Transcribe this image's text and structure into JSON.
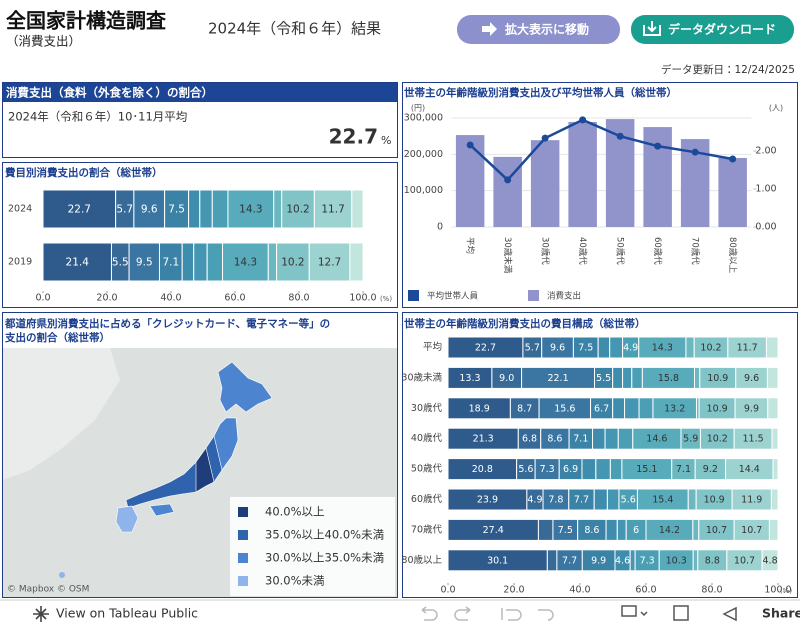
{
  "header": {
    "title": "全国家計構造調査",
    "subtitle": "（消費支出）",
    "period": "2024年（令和６年）結果",
    "buttons": [
      "拡大表示に移動",
      "データダウンロード"
    ],
    "updated": "データ更新日：12/24/2025"
  },
  "kpi": {
    "title": "消費支出（食料（外食を除く）の割合）",
    "period": "2024年（令和６年）10･11月平均",
    "value": 22.7,
    "unit": "%"
  },
  "chart_data": [
    {
      "type": "stacked-bar",
      "title": "費目別消費支出の割合（総世帯）",
      "categories": [
        "2024",
        "2019"
      ],
      "xlim": [
        0,
        100
      ],
      "xticks": [
        {
          "value": 0,
          "label": "0.0"
        },
        {
          "value": 20,
          "label": "20.0"
        },
        {
          "value": 40,
          "label": "40.0"
        },
        {
          "value": 60,
          "label": "60.0"
        },
        {
          "value": 80,
          "label": "80.0"
        },
        {
          "value": 100,
          "label": "100.0"
        }
      ],
      "x_unit": "(%)",
      "series": [
        {
          "color": "#2e5b8c",
          "values": [
            22.7,
            21.4
          ]
        },
        {
          "color": "#386a98",
          "values": [
            5.7,
            5.5
          ]
        },
        {
          "color": "#3a76a1",
          "values": [
            9.6,
            9.5
          ]
        },
        {
          "color": "#3b82a7",
          "values": [
            7.5,
            7.1
          ]
        },
        {
          "color": "#3f8dad",
          "values": [
            3.5,
            3.6
          ]
        },
        {
          "color": "#4496b2",
          "values": [
            3.9,
            4.2
          ]
        },
        {
          "color": "#4b9fb5",
          "values": [
            4.9,
            4.8
          ]
        },
        {
          "color": "#58abbb",
          "values": [
            14.3,
            14.3
          ]
        },
        {
          "color": "#6bb8c1",
          "values": [
            2.5,
            2.6
          ]
        },
        {
          "color": "#80c4c7",
          "values": [
            10.2,
            10.2
          ]
        },
        {
          "color": "#9cd3d0",
          "values": [
            11.7,
            12.7
          ]
        },
        {
          "color": "#c2e5de",
          "values": [
            3.5,
            4.1
          ]
        }
      ]
    },
    {
      "type": "combo",
      "title": "世帯主の年齢階級別消費支出及び平均世帯人員（総世帯）",
      "categories": [
        "平均",
        "30歳未満",
        "30歳代",
        "40歳代",
        "50歳代",
        "60歳代",
        "70歳代",
        "80歳以上"
      ],
      "y_unit": "(円)",
      "y2_unit": "(人)",
      "ylim": [
        0,
        300000
      ],
      "yticks": [
        0,
        {
          "value": 100000,
          "label": "100,000"
        },
        {
          "value": 200000,
          "label": "200,000"
        },
        {
          "value": 300000,
          "label": "300,000"
        }
      ],
      "y2lim": [
        0,
        2.87
      ],
      "y2ticks": [
        {
          "value": 0,
          "label": "0.00"
        },
        {
          "value": 1,
          "label": "1.00"
        },
        {
          "value": 2,
          "label": "2.00"
        }
      ],
      "grid": true,
      "series": [
        {
          "name": "平均世帯人員",
          "type": "line",
          "axis": "y2",
          "color": "#1b4a9b",
          "values": [
            2.16,
            1.24,
            2.34,
            2.82,
            2.39,
            2.13,
            1.97,
            1.79
          ]
        },
        {
          "name": "消費支出",
          "type": "bar",
          "color": "#9194ca",
          "values": [
            253000,
            193000,
            239000,
            289000,
            297000,
            275000,
            242000,
            190000
          ]
        }
      ]
    },
    {
      "type": "map",
      "title": [
        "都道府県別消費支出に占める「クレジットカード、電子マネー等」の",
        "支出の割合（総世帯）"
      ],
      "legend": [
        {
          "label": "40.0%以上",
          "color": "#1f3d7a"
        },
        {
          "label": "35.0%以上40.0%未満",
          "color": "#2f63ae"
        },
        {
          "label": "30.0%以上35.0%未満",
          "color": "#4d84d0"
        },
        {
          "label": "30.0%未満",
          "color": "#8fb4ec"
        }
      ],
      "attribution": "© Mapbox  © OSM"
    },
    {
      "type": "stacked-bar",
      "title": "世帯主の年齢階級別消費支出の費目構成（総世帯）",
      "categories": [
        "平均",
        "30歳未満",
        "30歳代",
        "40歳代",
        "50歳代",
        "60歳代",
        "70歳代",
        "80歳以上"
      ],
      "xlim": [
        0,
        100
      ],
      "xticks": [
        {
          "value": 0,
          "label": "0.0"
        },
        {
          "value": 20,
          "label": "20.0"
        },
        {
          "value": 40,
          "label": "40.0"
        },
        {
          "value": 60,
          "label": "60.0"
        },
        {
          "value": 80,
          "label": "80.0"
        },
        {
          "value": 100,
          "label": "100.0"
        }
      ],
      "x_unit": "(%)",
      "series": [
        {
          "color": "#2e5b8c",
          "values": [
            22.7,
            13.3,
            18.9,
            21.3,
            20.8,
            23.9,
            27.4,
            30.1
          ]
        },
        {
          "color": "#386a98",
          "values": [
            5.7,
            9.0,
            8.7,
            6.8,
            5.6,
            4.9,
            4.4,
            2.9
          ],
          "value_labels": [
            "5.7",
            "9.0",
            "8.7",
            "6.8",
            "5.6",
            "4.9",
            null,
            null
          ]
        },
        {
          "color": "#3a76a1",
          "values": [
            9.6,
            22.1,
            15.6,
            8.6,
            7.3,
            7.8,
            7.5,
            7.7
          ]
        },
        {
          "color": "#3b82a7",
          "values": [
            7.5,
            5.5,
            6.7,
            7.1,
            6.9,
            7.7,
            8.6,
            9.9
          ]
        },
        {
          "color": "#3f8dad",
          "values": [
            3.5,
            3.0,
            3.6,
            3.8,
            4.2,
            4.0,
            3.4,
            4.6
          ]
        },
        {
          "color": "#4496b2",
          "values": [
            3.9,
            2.8,
            4.4,
            4.0,
            4.4,
            3.5,
            2.7,
            1.5
          ]
        },
        {
          "color": "#4b9fb5",
          "values": [
            4.9,
            3.2,
            4.2,
            4.4,
            3.5,
            5.6,
            6.0,
            7.3
          ]
        },
        {
          "color": "#58abbb",
          "values": [
            14.3,
            15.8,
            13.2,
            14.6,
            15.1,
            15.4,
            14.2,
            10.3
          ]
        },
        {
          "color": "#6bb8c1",
          "values": [
            2.5,
            1.6,
            0.8,
            5.9,
            7.1,
            2.4,
            1.8,
            1.4
          ]
        },
        {
          "color": "#80c4c7",
          "values": [
            10.2,
            10.9,
            10.9,
            10.2,
            9.2,
            10.9,
            10.7,
            8.8
          ]
        },
        {
          "color": "#9cd3d0",
          "values": [
            11.7,
            9.6,
            9.9,
            11.5,
            14.4,
            11.9,
            10.7,
            10.7
          ]
        },
        {
          "color": "#c2e5de",
          "values": [
            3.5,
            3.2,
            3.1,
            1.8,
            1.5,
            2.0,
            2.6,
            4.8
          ]
        }
      ]
    }
  ],
  "footer": {
    "link": "View on Tableau Public",
    "share": "Share"
  }
}
